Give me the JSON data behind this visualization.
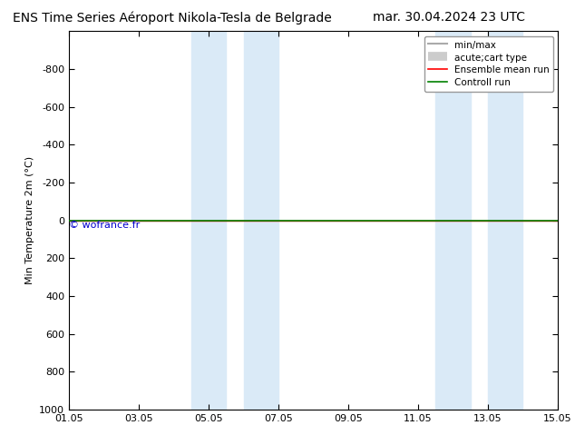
{
  "title_left": "ENS Time Series Aéroport Nikola-Tesla de Belgrade",
  "title_right": "mar. 30.04.2024 23 UTC",
  "ylabel": "Min Temperature 2m (°C)",
  "xlabel_ticks": [
    "01.05",
    "03.05",
    "05.05",
    "07.05",
    "09.05",
    "11.05",
    "13.05",
    "15.05"
  ],
  "xtick_positions": [
    0,
    2,
    4,
    6,
    8,
    10,
    12,
    14
  ],
  "xlim": [
    0,
    14
  ],
  "ylim": [
    1000,
    -1000
  ],
  "yticks": [
    -800,
    -600,
    -400,
    -200,
    0,
    200,
    400,
    600,
    800,
    1000
  ],
  "shade_regions": [
    [
      3.5,
      4.5
    ],
    [
      5.0,
      6.0
    ],
    [
      10.5,
      11.5
    ],
    [
      12.0,
      13.0
    ]
  ],
  "shade_color": "#daeaf7",
  "watermark": "© wofrance.fr",
  "watermark_color": "#0000cc",
  "bg_color": "#ffffff",
  "legend_items": [
    {
      "label": "min/max",
      "color": "#aaaaaa",
      "lw": 1.5,
      "ls": "-"
    },
    {
      "label": "acute;cart type",
      "color": "#cccccc",
      "lw": 7,
      "ls": "-"
    },
    {
      "label": "Ensemble mean run",
      "color": "#ff0000",
      "lw": 1.2,
      "ls": "-"
    },
    {
      "label": "Controll run",
      "color": "#008000",
      "lw": 1.2,
      "ls": "-"
    }
  ],
  "control_run_y": 0,
  "ensemble_mean_y": 0,
  "title_fontsize": 10,
  "tick_fontsize": 8,
  "ylabel_fontsize": 8,
  "legend_fontsize": 7.5
}
